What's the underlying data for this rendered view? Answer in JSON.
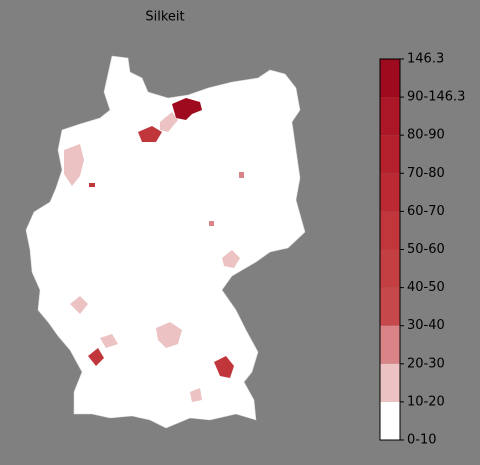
{
  "map": {
    "title": "Silkeit"
  },
  "colorbar": {
    "labels": [
      "146.3",
      "90-146.3",
      "80-90",
      "70-80",
      "60-70",
      "50-60",
      "40-50",
      "30-40",
      "20-30",
      "10-20",
      "0-10"
    ],
    "colors": [
      "#9e0a1e",
      "#ab1726",
      "#b4212d",
      "#bb2a33",
      "#c0363b",
      "#c43f42",
      "#c6484a",
      "#d98587",
      "#ecc2c2",
      "#ffffff"
    ]
  }
}
